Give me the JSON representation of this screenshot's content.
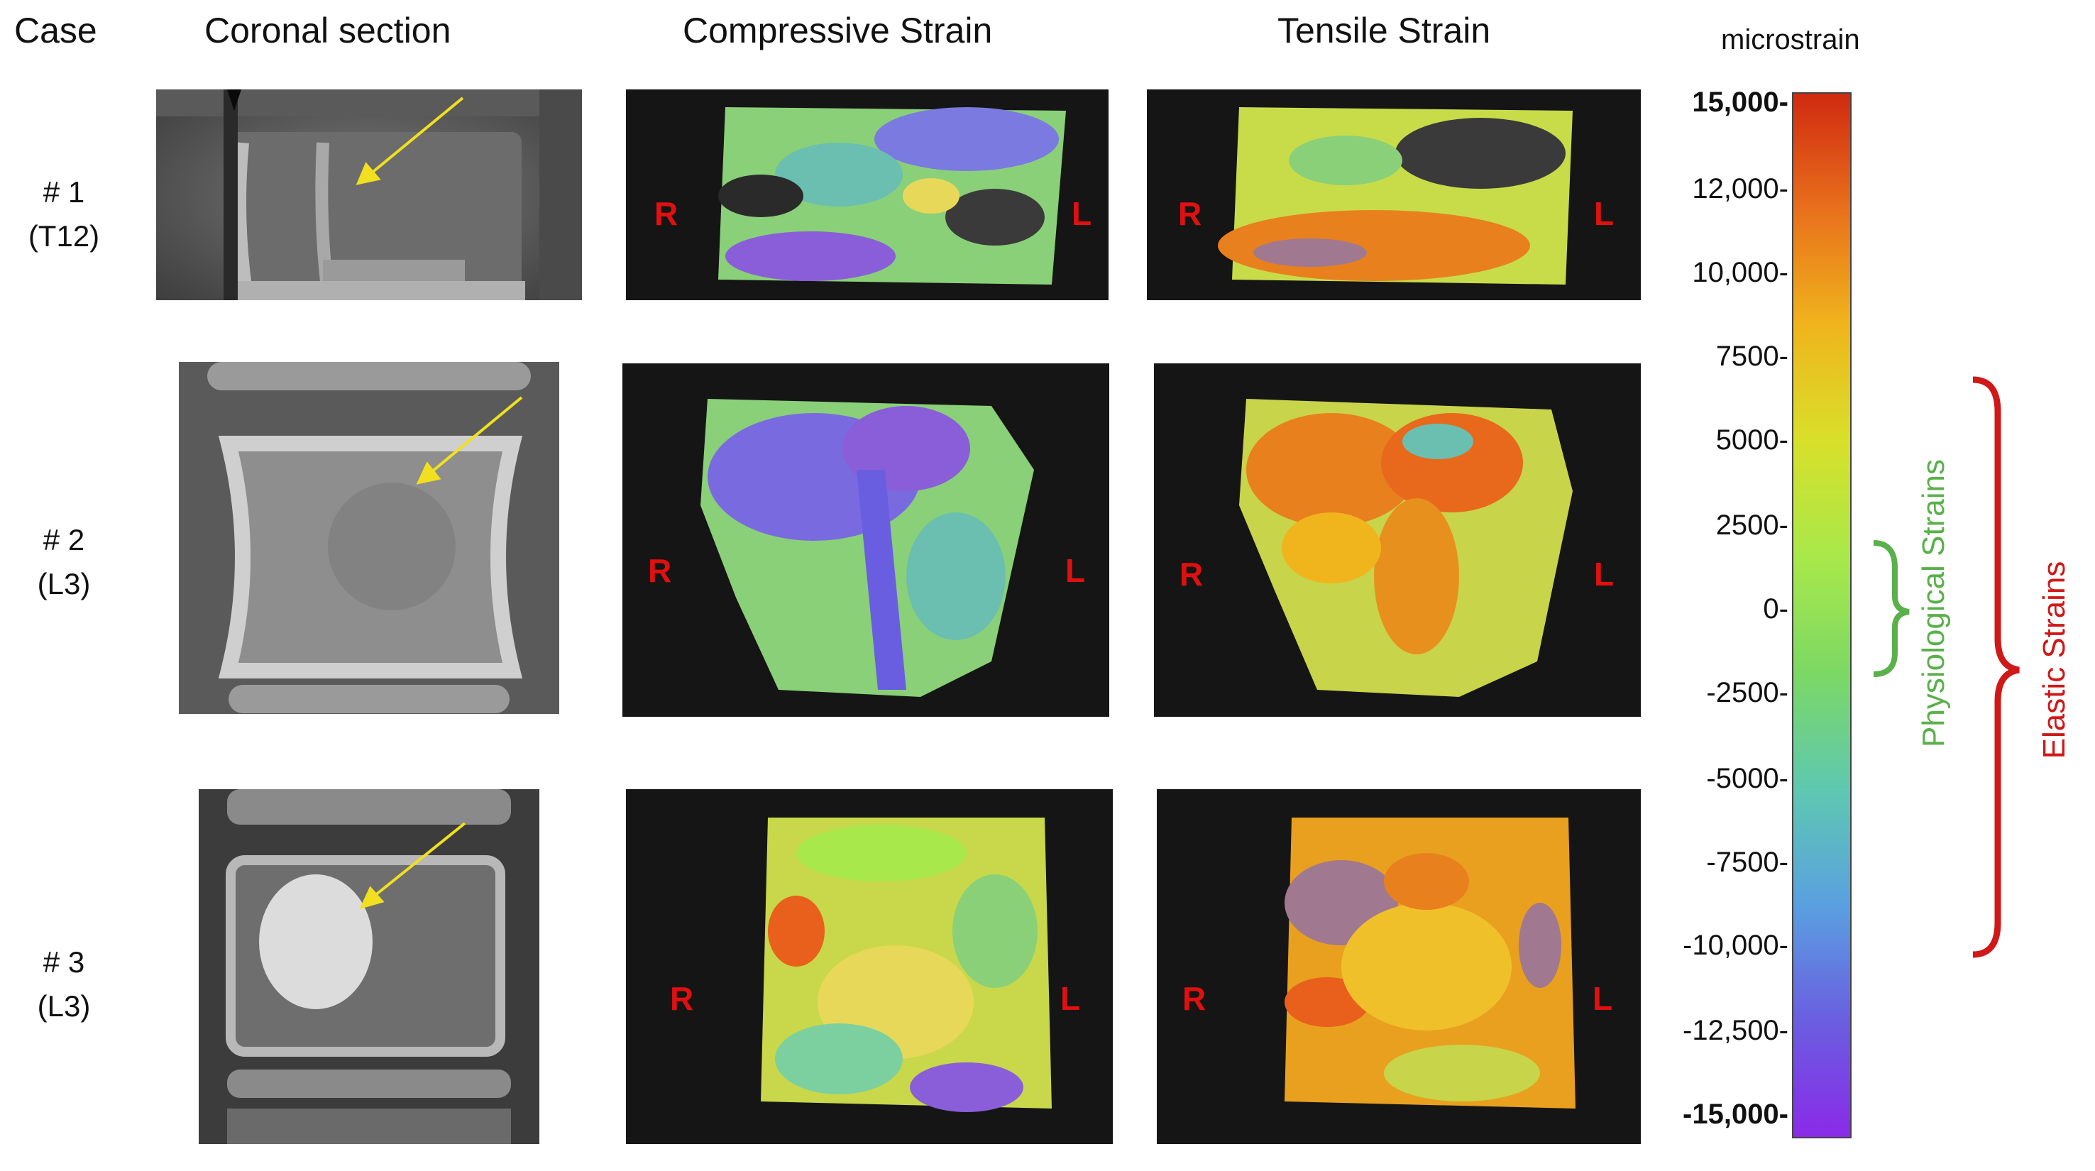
{
  "headers": {
    "case": "Case",
    "coronal": "Coronal section",
    "compressive": "Compressive Strain",
    "tensile": "Tensile Strain",
    "unit": "microstrain"
  },
  "cases": [
    {
      "num": "# 1",
      "level": "(T12)"
    },
    {
      "num": "# 2",
      "level": "(L3)"
    },
    {
      "num": "# 3",
      "level": "(L3)"
    }
  ],
  "side_labels": {
    "right": "R",
    "left": "L"
  },
  "colorbar": {
    "ticks": [
      "15,000-",
      "12,000-",
      "10,000-",
      "7500-",
      "5000-",
      "2500-",
      "0-",
      "-2500-",
      "-5000-",
      "-7500-",
      "-10,000-",
      "-12,500-",
      "-15,000-"
    ],
    "gradient": [
      "#d02a10",
      "#e8701c",
      "#f0b41c",
      "#d8e02a",
      "#a8e84a",
      "#7cd864",
      "#5ec8b0",
      "#5aa0e0",
      "#6a5ee0",
      "#8a2ae8"
    ]
  },
  "brackets": {
    "physiological": "Physiological Strains",
    "elastic": "Elastic Strains",
    "physiological_color": "#5ab04a",
    "elastic_color": "#d01818"
  },
  "arrow_color": "#f0e020"
}
